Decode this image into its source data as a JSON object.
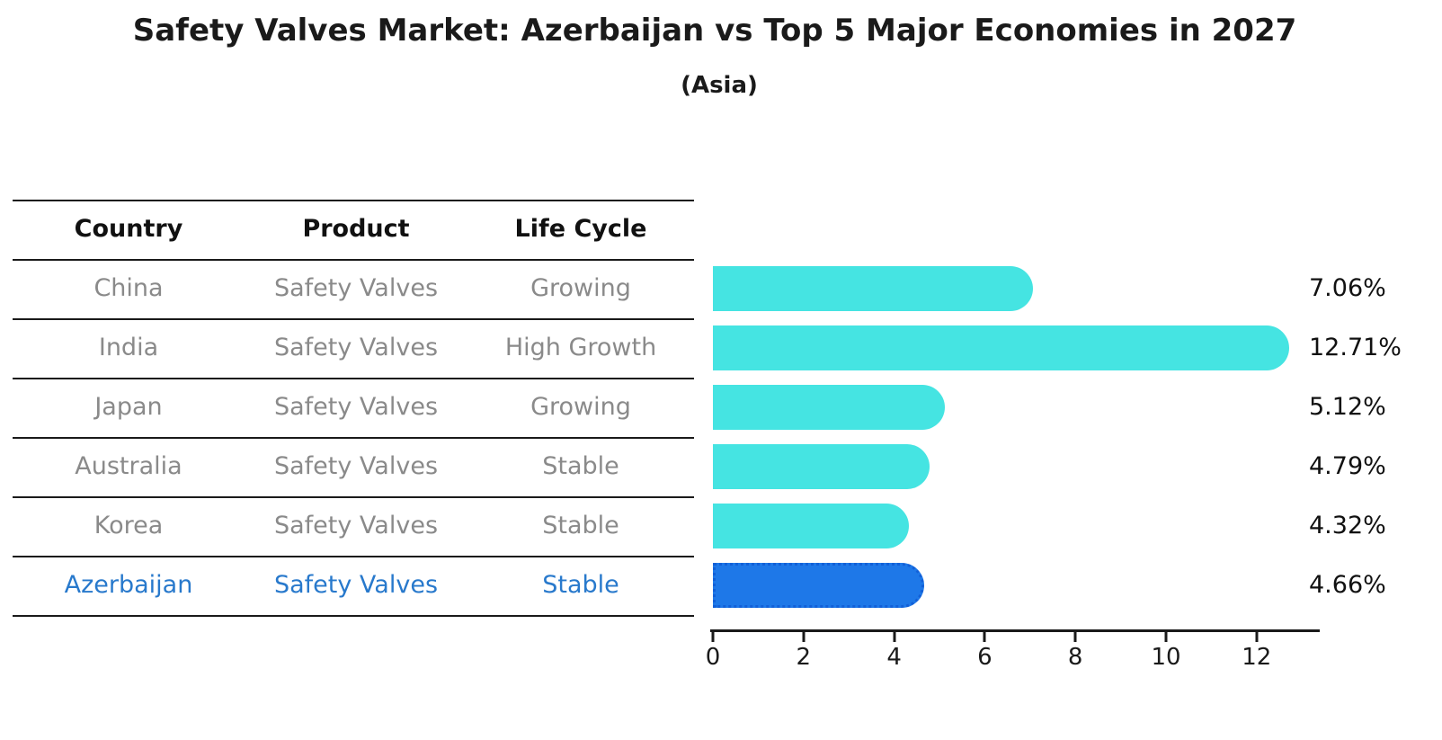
{
  "title": "Safety Valves Market: Azerbaijan vs Top 5 Major Economies in 2027",
  "subtitle": "(Asia)",
  "table": {
    "headers": [
      "Country",
      "Product",
      "Life Cycle"
    ],
    "rows": [
      {
        "country": "China",
        "product": "Safety Valves",
        "life_cycle": "Growing",
        "highlight": false
      },
      {
        "country": "India",
        "product": "Safety Valves",
        "life_cycle": "High Growth",
        "highlight": false
      },
      {
        "country": "Japan",
        "product": "Safety Valves",
        "life_cycle": "Growing",
        "highlight": false
      },
      {
        "country": "Australia",
        "product": "Safety Valves",
        "life_cycle": "Stable",
        "highlight": false
      },
      {
        "country": "Korea",
        "product": "Safety Valves",
        "life_cycle": "Stable",
        "highlight": false
      },
      {
        "country": "Azerbaijan",
        "product": "Safety Valves",
        "life_cycle": "Stable",
        "highlight": true
      }
    ]
  },
  "chart_data": {
    "type": "bar",
    "orientation": "horizontal",
    "title": "Safety Valves Market: Azerbaijan vs Top 5 Major Economies in 2027",
    "subtitle": "(Asia)",
    "categories": [
      "China",
      "India",
      "Japan",
      "Australia",
      "Korea",
      "Azerbaijan"
    ],
    "values": [
      7.06,
      12.71,
      5.12,
      4.79,
      4.32,
      4.66
    ],
    "labels": [
      "7.06%",
      "12.71%",
      "5.12%",
      "4.79%",
      "4.32%",
      "4.66%"
    ],
    "xticks": [
      0,
      2,
      4,
      6,
      8,
      10,
      12
    ],
    "xlim": [
      0,
      13.4
    ],
    "grid": false,
    "legend": "none",
    "highlight_index": 5,
    "bar_color": "#45e4e2",
    "highlight_color": "#1e78e8",
    "highlight_border_color": "#1260d8"
  },
  "colors": {
    "header_text": "#111111",
    "row_text": "#8a8a8a",
    "highlight_text": "#2879cc",
    "value_text": "#111111",
    "line": "#1a1a1a",
    "background": "#ffffff"
  }
}
